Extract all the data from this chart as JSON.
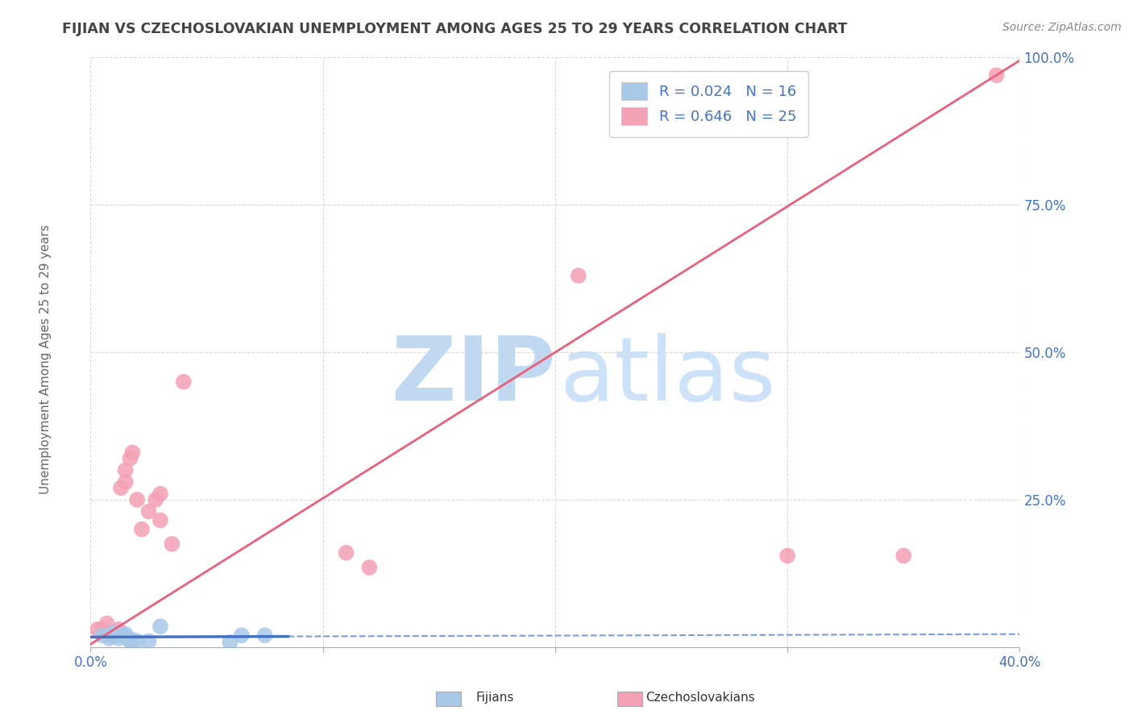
{
  "title": "FIJIAN VS CZECHOSLOVAKIAN UNEMPLOYMENT AMONG AGES 25 TO 29 YEARS CORRELATION CHART",
  "source": "Source: ZipAtlas.com",
  "ylabel": "Unemployment Among Ages 25 to 29 years",
  "xlim": [
    0.0,
    0.4
  ],
  "ylim": [
    0.0,
    1.0
  ],
  "xticks": [
    0.0,
    0.1,
    0.2,
    0.3,
    0.4
  ],
  "xtick_labels_visible": [
    "0.0%",
    "",
    "",
    "",
    "40.0%"
  ],
  "yticks": [
    0.0,
    0.25,
    0.5,
    0.75,
    1.0
  ],
  "ytick_labels": [
    "",
    "25.0%",
    "50.0%",
    "75.0%",
    "100.0%"
  ],
  "fijian_R": 0.024,
  "fijian_N": 16,
  "czech_R": 0.646,
  "czech_N": 25,
  "fijian_color": "#a8c8e8",
  "czech_color": "#f4a0b5",
  "fijian_line_color": "#4472c4",
  "czech_line_color": "#e8607a",
  "title_color": "#444444",
  "source_color": "#888888",
  "axis_label_color": "#666666",
  "tick_label_color": "#4472c4",
  "fijian_x": [
    0.005,
    0.008,
    0.01,
    0.01,
    0.012,
    0.013,
    0.015,
    0.015,
    0.017,
    0.018,
    0.02,
    0.025,
    0.03,
    0.06,
    0.065,
    0.075
  ],
  "fijian_y": [
    0.02,
    0.015,
    0.02,
    0.025,
    0.015,
    0.02,
    0.018,
    0.022,
    0.01,
    0.012,
    0.01,
    0.01,
    0.035,
    0.008,
    0.02,
    0.02
  ],
  "czech_x": [
    0.003,
    0.005,
    0.007,
    0.008,
    0.01,
    0.012,
    0.013,
    0.015,
    0.015,
    0.017,
    0.018,
    0.02,
    0.022,
    0.025,
    0.028,
    0.03,
    0.03,
    0.035,
    0.04,
    0.11,
    0.12,
    0.21,
    0.3,
    0.35,
    0.39
  ],
  "czech_y": [
    0.03,
    0.03,
    0.04,
    0.02,
    0.025,
    0.03,
    0.27,
    0.28,
    0.3,
    0.32,
    0.33,
    0.25,
    0.2,
    0.23,
    0.25,
    0.215,
    0.26,
    0.175,
    0.45,
    0.16,
    0.135,
    0.63,
    0.155,
    0.155,
    0.97
  ],
  "fijian_trend_x": [
    0.0,
    0.4
  ],
  "fijian_trend_y": [
    0.017,
    0.022
  ],
  "czech_trend_x": [
    0.0,
    0.4
  ],
  "czech_trend_y": [
    0.005,
    0.995
  ],
  "background_color": "#ffffff",
  "grid_color": "#d8d8d8",
  "watermark_zip_color": "#c0d8f0",
  "watermark_atlas_color": "#c8dff8"
}
